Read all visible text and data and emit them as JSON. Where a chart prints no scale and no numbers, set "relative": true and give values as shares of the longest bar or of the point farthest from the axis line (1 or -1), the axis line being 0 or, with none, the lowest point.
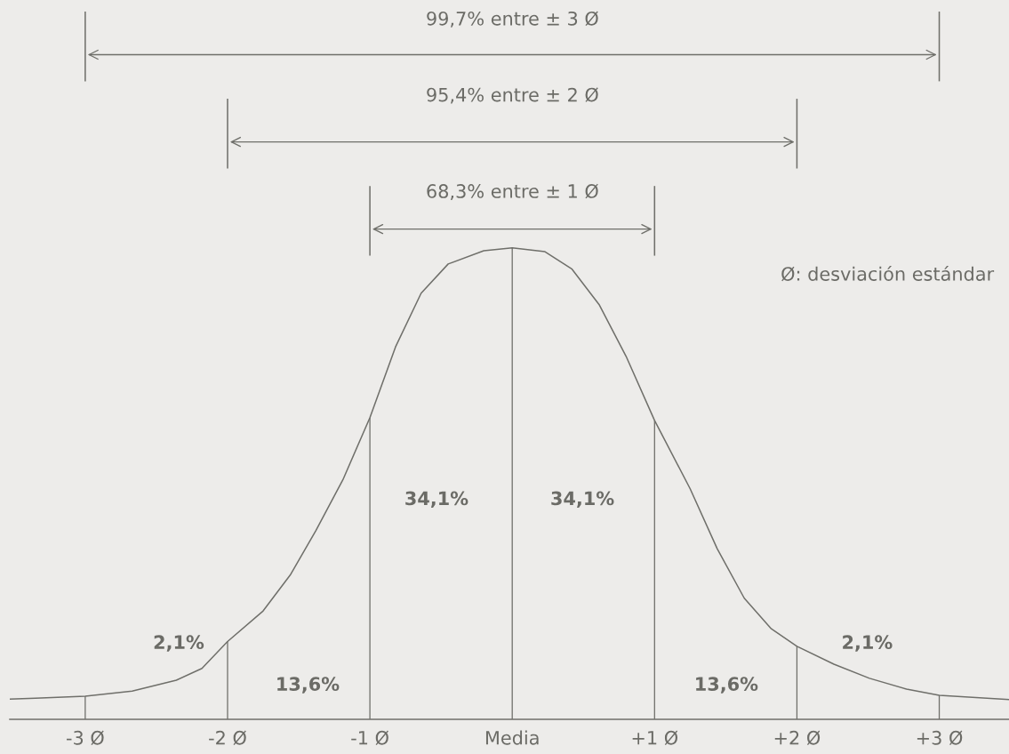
{
  "chart_data": {
    "type": "line",
    "relative": true,
    "xlim": [
      -3.53,
      3.49
    ],
    "xticks": [
      {
        "value": -3,
        "label": "-3 Ø"
      },
      {
        "value": -2,
        "label": "-2 Ø"
      },
      {
        "value": -1,
        "label": "-1 Ø"
      },
      {
        "value": 0,
        "label": "Media"
      },
      {
        "value": 1,
        "label": "+1 Ø"
      },
      {
        "value": 2,
        "label": "+2 Ø"
      },
      {
        "value": 3,
        "label": "+3 Ø"
      }
    ],
    "series": [
      {
        "color": "#6f6f6a",
        "x": [
          -3.53,
          -3.35,
          -3,
          -2.67,
          -2.36,
          -2.18,
          -2,
          -1.75,
          -1.56,
          -1.38,
          -1.19,
          -1,
          -0.82,
          -0.64,
          -0.45,
          -0.2,
          0,
          0.23,
          0.42,
          0.61,
          0.8,
          1,
          1.25,
          1.44,
          1.63,
          1.82,
          2,
          2.26,
          2.51,
          2.77,
          3,
          3.49
        ],
        "values": [
          0.043,
          0.045,
          0.049,
          0.06,
          0.083,
          0.108,
          0.165,
          0.23,
          0.306,
          0.4,
          0.508,
          0.64,
          0.79,
          0.904,
          0.966,
          0.994,
          1,
          0.992,
          0.955,
          0.88,
          0.77,
          0.634,
          0.489,
          0.362,
          0.257,
          0.192,
          0.155,
          0.117,
          0.087,
          0.064,
          0.051,
          0.042
        ]
      },
      {
        "type": "bar",
        "color": "#6f6f6a",
        "x": [
          -3,
          -2,
          -1,
          0,
          1,
          2,
          3
        ],
        "values": [
          0.049,
          0.165,
          0.64,
          1,
          0.634,
          0.155,
          0.051
        ]
      }
    ],
    "annotations": [
      "68,3% entre ± 1 Ø",
      "95,4% entre ± 2 Ø",
      "99,7% entre ± 3 Ø",
      "2,1%",
      "13,6%",
      "34,1%",
      "34,1%",
      "13,6%",
      "2,1%",
      "Ø: desviación estándar"
    ]
  }
}
